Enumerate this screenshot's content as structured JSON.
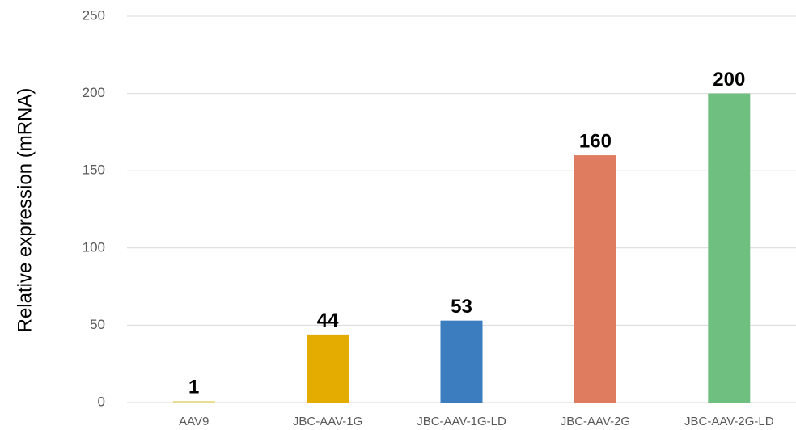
{
  "chart_data": {
    "type": "bar",
    "ylabel": "Relative expression (mRNA)",
    "categories": [
      "AAV9",
      "JBC-AAV-1G",
      "JBC-AAV-1G-LD",
      "JBC-AAV-2G",
      "JBC-AAV-2G-LD"
    ],
    "values": [
      1,
      44,
      53,
      160,
      200
    ],
    "colors": [
      "#e9dc8f",
      "#e4ab00",
      "#3c7dbf",
      "#df7b5f",
      "#6ebf80"
    ],
    "ylim": [
      0,
      250
    ],
    "yticks": [
      0,
      50,
      100,
      150,
      200,
      250
    ],
    "grid": true
  }
}
